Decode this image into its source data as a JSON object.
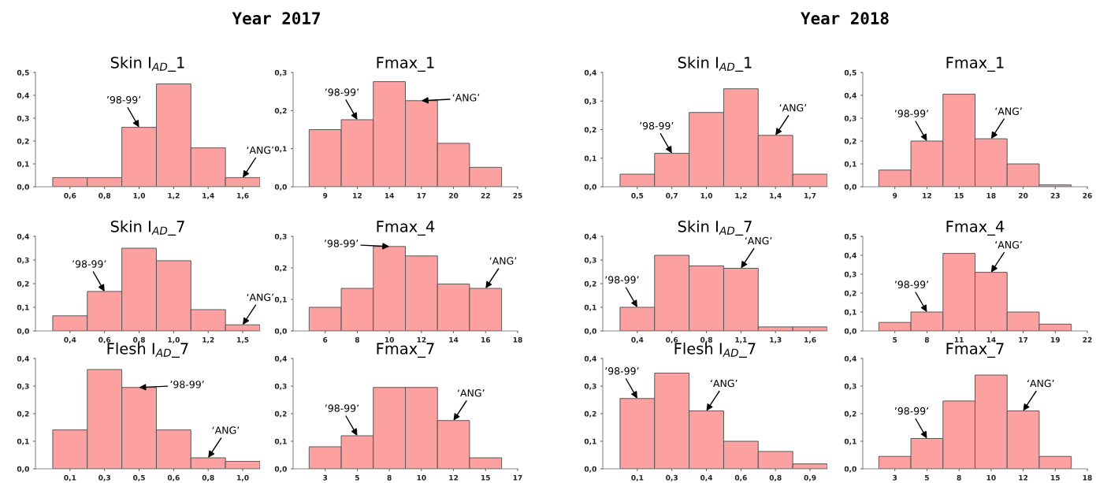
{
  "chart_data": [
    {
      "type": "bar",
      "title": "Skin I$_{AD}$_1",
      "color": "#fda0a0",
      "categories": [
        "0,6",
        "0,8",
        "1,0",
        "1,2",
        "1,4",
        "1,6"
      ],
      "values": [
        0.04,
        0.04,
        0.26,
        0.45,
        0.17,
        0.04
      ],
      "ylim": [
        0,
        0.5
      ],
      "yticks": [
        {
          "value": 0,
          "label": "0,0"
        },
        {
          "value": 0.1,
          "label": "0,1"
        },
        {
          "value": 0.2,
          "label": "0,2"
        },
        {
          "value": 0.3,
          "label": "0,3"
        },
        {
          "value": 0.4,
          "label": "0,4"
        },
        {
          "value": 0.5,
          "label": "0,5"
        }
      ],
      "annotations": [
        "Year 2017",
        {
          "text": "’98-99’",
          "x": "1,0",
          "y": 0.26
        },
        {
          "text": "‘ANG’",
          "x": "1,6",
          "y": 0.04
        }
      ]
    },
    {
      "type": "bar",
      "title": "Fmax_1",
      "color": "#fda0a0",
      "categories": [
        "9",
        "12",
        "14",
        "17",
        "20",
        "22",
        "25"
      ],
      "values": [
        0.15,
        0.176,
        0.276,
        0.226,
        0.114,
        0.051,
        null
      ],
      "ylim": [
        0,
        0.3
      ],
      "yticks": [
        {
          "value": 0,
          "label": "0,0"
        },
        {
          "value": 0.1,
          "label": "0,1"
        },
        {
          "value": 0.2,
          "label": "0,2"
        },
        {
          "value": 0.3,
          "label": "0,3"
        }
      ],
      "annotations": [
        {
          "text": "’98-99’",
          "x": "12",
          "y": 0.176
        },
        {
          "text": "‘ANG’",
          "x": "17",
          "y": 0.226
        }
      ]
    },
    {
      "type": "bar",
      "title": "Skin I$_{AD}$_7",
      "color": "#fda0a0",
      "categories": [
        "0,4",
        "0,6",
        "0,8",
        "1,0",
        "1,2",
        "1,5"
      ],
      "values": [
        0.064,
        0.167,
        0.35,
        0.297,
        0.09,
        0.026
      ],
      "ylim": [
        0,
        0.4
      ],
      "yticks": [
        {
          "value": 0,
          "label": "0,0"
        },
        {
          "value": 0.1,
          "label": "0,1"
        },
        {
          "value": 0.2,
          "label": "0,2"
        },
        {
          "value": 0.3,
          "label": "0,3"
        },
        {
          "value": 0.4,
          "label": "0,4"
        }
      ],
      "annotations": [
        {
          "text": "’98-99’",
          "x": "0,6",
          "y": 0.167
        },
        {
          "text": "‘ANG’",
          "x": "1,5",
          "y": 0.026
        }
      ]
    },
    {
      "type": "bar",
      "title": "Fmax_4",
      "color": "#fda0a0",
      "categories": [
        "6",
        "8",
        "10",
        "12",
        "14",
        "16",
        "18"
      ],
      "values": [
        0.075,
        0.135,
        0.268,
        0.238,
        0.149,
        0.135,
        null
      ],
      "ylim": [
        0,
        0.3
      ],
      "yticks": [
        {
          "value": 0,
          "label": "0,0"
        },
        {
          "value": 0.1,
          "label": "0,1"
        },
        {
          "value": 0.2,
          "label": "0,2"
        },
        {
          "value": 0.3,
          "label": "0,3"
        }
      ],
      "annotations": [
        {
          "text": "’98-99’",
          "x": "10",
          "y": 0.268
        },
        {
          "text": "‘ANG’",
          "x": "16",
          "y": 0.135
        }
      ]
    },
    {
      "type": "bar",
      "title": "Flesh I$_{AD}$_7",
      "color": "#fda0a0",
      "categories": [
        "0,1",
        "0,3",
        "0,5",
        "0,6",
        "0,8",
        "1,0"
      ],
      "values": [
        0.141,
        0.36,
        0.295,
        0.141,
        0.04,
        0.027
      ],
      "ylim": [
        0,
        0.4
      ],
      "yticks": [
        {
          "value": 0,
          "label": "0,0"
        },
        {
          "value": 0.1,
          "label": "0,1"
        },
        {
          "value": 0.2,
          "label": "0,2"
        },
        {
          "value": 0.3,
          "label": "0,3"
        },
        {
          "value": 0.4,
          "label": "0,4"
        }
      ],
      "annotations": [
        {
          "text": "’98-99’",
          "x": "0,5",
          "y": 0.295
        },
        {
          "text": "‘ANG’",
          "x": "0,8",
          "y": 0.04
        }
      ]
    },
    {
      "type": "bar",
      "title": "Fmax_7",
      "color": "#fda0a0",
      "categories": [
        "3",
        "5",
        "8",
        "10",
        "12",
        "15",
        "17"
      ],
      "values": [
        0.08,
        0.12,
        0.295,
        0.295,
        0.175,
        0.04,
        null
      ],
      "ylim": [
        0,
        0.4
      ],
      "yticks": [
        {
          "value": 0,
          "label": "0,0"
        },
        {
          "value": 0.1,
          "label": "0,1"
        },
        {
          "value": 0.2,
          "label": "0,2"
        },
        {
          "value": 0.3,
          "label": "0,3"
        },
        {
          "value": 0.4,
          "label": "0,4"
        }
      ],
      "annotations": [
        {
          "text": "’98-99’",
          "x": "5",
          "y": 0.12
        },
        {
          "text": "‘ANG’",
          "x": "12",
          "y": 0.175
        }
      ]
    },
    {
      "type": "bar",
      "title": "Skin I$_{AD}$_1",
      "color": "#fda0a0",
      "categories": [
        "0,5",
        "0,7",
        "1,0",
        "1,2",
        "1,4",
        "1,7"
      ],
      "values": [
        0.044,
        0.117,
        0.26,
        0.343,
        0.18,
        0.044
      ],
      "ylim": [
        0,
        0.4
      ],
      "yticks": [
        {
          "value": 0,
          "label": "0,0"
        },
        {
          "value": 0.1,
          "label": "0,1"
        },
        {
          "value": 0.2,
          "label": "0,2"
        },
        {
          "value": 0.3,
          "label": "0,3"
        },
        {
          "value": 0.4,
          "label": "0,4"
        }
      ],
      "annotations": [
        "Year 2018",
        {
          "text": "’98-99’",
          "x": "0,7",
          "y": 0.117
        },
        {
          "text": "‘ANG’",
          "x": "1,4",
          "y": 0.18
        }
      ]
    },
    {
      "type": "bar",
      "title": "Fmax_1",
      "color": "#fda0a0",
      "categories": [
        "9",
        "12",
        "15",
        "18",
        "20",
        "23",
        "26"
      ],
      "values": [
        0.073,
        0.2,
        0.405,
        0.21,
        0.1,
        0.008,
        null
      ],
      "ylim": [
        0,
        0.5
      ],
      "yticks": [
        {
          "value": 0,
          "label": "0,0"
        },
        {
          "value": 0.1,
          "label": "0,1"
        },
        {
          "value": 0.2,
          "label": "0,2"
        },
        {
          "value": 0.3,
          "label": "0,3"
        },
        {
          "value": 0.4,
          "label": "0,4"
        },
        {
          "value": 0.5,
          "label": "0,5"
        }
      ],
      "annotations": [
        {
          "text": "’98-99’",
          "x": "12",
          "y": 0.2
        },
        {
          "text": "‘ANG’",
          "x": "18",
          "y": 0.21
        }
      ]
    },
    {
      "type": "bar",
      "title": "Skin I$_{AD}$_7",
      "color": "#fda0a0",
      "categories": [
        "0,4",
        "0,6",
        "0,8",
        "1,1",
        "1,3",
        "1,6"
      ],
      "values": [
        0.1,
        0.32,
        0.275,
        0.265,
        0.017,
        0.017
      ],
      "ylim": [
        0,
        0.4
      ],
      "yticks": [
        {
          "value": 0,
          "label": "0,0"
        },
        {
          "value": 0.1,
          "label": "0,1"
        },
        {
          "value": 0.2,
          "label": "0,2"
        },
        {
          "value": 0.3,
          "label": "0,3"
        },
        {
          "value": 0.4,
          "label": "0,4"
        }
      ],
      "annotations": [
        {
          "text": "’98-99’",
          "x": "0,4",
          "y": 0.1
        },
        {
          "text": "‘ANG’",
          "x": "1,1",
          "y": 0.265
        }
      ]
    },
    {
      "type": "bar",
      "title": "Fmax_4",
      "color": "#fda0a0",
      "categories": [
        "5",
        "8",
        "11",
        "14",
        "17",
        "19",
        "22"
      ],
      "values": [
        0.045,
        0.1,
        0.41,
        0.31,
        0.1,
        0.036,
        null
      ],
      "ylim": [
        0,
        0.5
      ],
      "yticks": [
        {
          "value": 0,
          "label": "0,0"
        },
        {
          "value": 0.1,
          "label": "0,1"
        },
        {
          "value": 0.2,
          "label": "0,2"
        },
        {
          "value": 0.3,
          "label": "0,3"
        },
        {
          "value": 0.4,
          "label": "0,4"
        },
        {
          "value": 0.5,
          "label": "0,5"
        }
      ],
      "annotations": [
        {
          "text": "’98-99’",
          "x": "8",
          "y": 0.1
        },
        {
          "text": "‘ANG’",
          "x": "14",
          "y": 0.31
        }
      ]
    },
    {
      "type": "bar",
      "title": "Flesh I$_{AD}$_7",
      "color": "#fda0a0",
      "categories": [
        "0,1",
        "0,3",
        "0,4",
        "0,6",
        "0,8",
        "0,9"
      ],
      "values": [
        0.255,
        0.347,
        0.21,
        0.1,
        0.063,
        0.018
      ],
      "ylim": [
        0,
        0.4
      ],
      "yticks": [
        {
          "value": 0,
          "label": "0,0"
        },
        {
          "value": 0.1,
          "label": "0,1"
        },
        {
          "value": 0.2,
          "label": "0,2"
        },
        {
          "value": 0.3,
          "label": "0,3"
        },
        {
          "value": 0.4,
          "label": "0,4"
        }
      ],
      "annotations": [
        {
          "text": "’98-99’",
          "x": "0,1",
          "y": 0.255
        },
        {
          "text": "‘ANG’",
          "x": "0,4",
          "y": 0.21
        }
      ]
    },
    {
      "type": "bar",
      "title": "Fmax_7",
      "color": "#fda0a0",
      "categories": [
        "3",
        "5",
        "8",
        "10",
        "12",
        "15",
        "18"
      ],
      "values": [
        0.045,
        0.11,
        0.246,
        0.34,
        0.21,
        0.045,
        null
      ],
      "ylim": [
        0,
        0.4
      ],
      "yticks": [
        {
          "value": 0,
          "label": "0,0"
        },
        {
          "value": 0.1,
          "label": "0,1"
        },
        {
          "value": 0.2,
          "label": "0,2"
        },
        {
          "value": 0.3,
          "label": "0,3"
        },
        {
          "value": 0.4,
          "label": "0,4"
        }
      ],
      "annotations": [
        {
          "text": "’98-99’",
          "x": "5",
          "y": 0.11
        },
        {
          "text": "‘ANG’",
          "x": "12",
          "y": 0.21
        }
      ]
    }
  ]
}
